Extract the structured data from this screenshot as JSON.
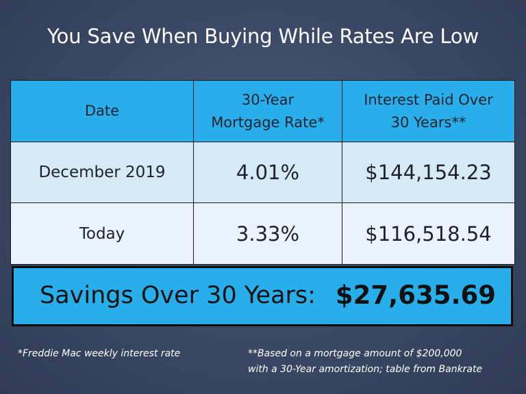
{
  "title": "You Save When Buying While Rates Are Low",
  "table": {
    "headers": [
      [
        "Date"
      ],
      [
        "30-Year",
        "Mortgage Rate*"
      ],
      [
        "Interest Paid Over",
        "30 Years**"
      ]
    ],
    "rows": [
      {
        "date": "December 2019",
        "rate": "4.01%",
        "interest": "$144,154.23"
      },
      {
        "date": "Today",
        "rate": "3.33%",
        "interest": "$116,518.54"
      }
    ]
  },
  "savings": {
    "label": "Savings Over 30 Years:",
    "value": "$27,635.69"
  },
  "footnotes": {
    "left": "*Freddie Mac weekly interest rate",
    "right_line1": "**Based on a mortgage amount of $200,000",
    "right_line2": "with a 30-Year amortization; table from Bankrate"
  },
  "colors": {
    "background": "#3a4865",
    "header_fill": "#28aeea",
    "row1_fill": "#d6e9f7",
    "row2_fill": "#eaf3fb",
    "savings_fill": "#28aeea"
  }
}
